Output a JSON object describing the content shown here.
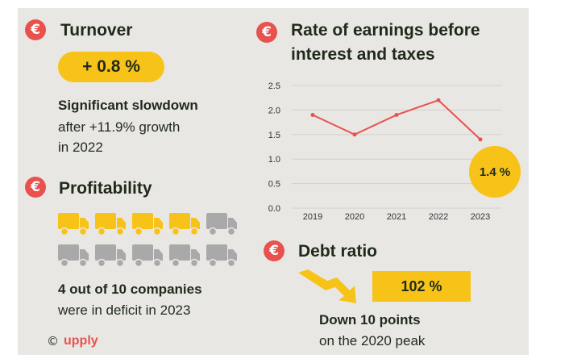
{
  "colors": {
    "background": "#e9e7e4",
    "accent_yellow": "#f8c318",
    "accent_red": "#e8524e",
    "truck_grey": "#a9a9a9",
    "text": "#1f2a1a"
  },
  "currency_symbol": "€",
  "turnover": {
    "title": "Turnover",
    "value": "+ 0.8 %",
    "headline": "Significant slowdown",
    "line1": "after +11.9% growth",
    "line2": "in 2022"
  },
  "profitability": {
    "title": "Profitability",
    "trucks_total": 10,
    "trucks_highlighted": 4,
    "headline": "4 out of 10 companies",
    "line1": "were in deficit in 2023"
  },
  "ebit": {
    "title_line1": "Rate of earnings before",
    "title_line2": "interest and taxes",
    "badge": "1.4 %"
  },
  "debt": {
    "title": "Debt ratio",
    "value": "102 %",
    "headline": "Down 10 points",
    "line1": "on the 2020 peak"
  },
  "logo": {
    "copyright": "©",
    "brand": "upply"
  },
  "chart_data": {
    "type": "line",
    "title": "Rate of earnings before interest and taxes",
    "x": [
      "2019",
      "2020",
      "2021",
      "2022",
      "2023"
    ],
    "series": [
      {
        "values": [
          1.9,
          1.5,
          1.9,
          2.2,
          1.4
        ],
        "color": "#e8524e"
      }
    ],
    "ylim": [
      0,
      2.5
    ],
    "yticks": [
      "0.0",
      "0.5",
      "1.0",
      "1.5",
      "2.0",
      "2.5"
    ],
    "grid": "horizontal",
    "annotation": "1.4 %"
  }
}
